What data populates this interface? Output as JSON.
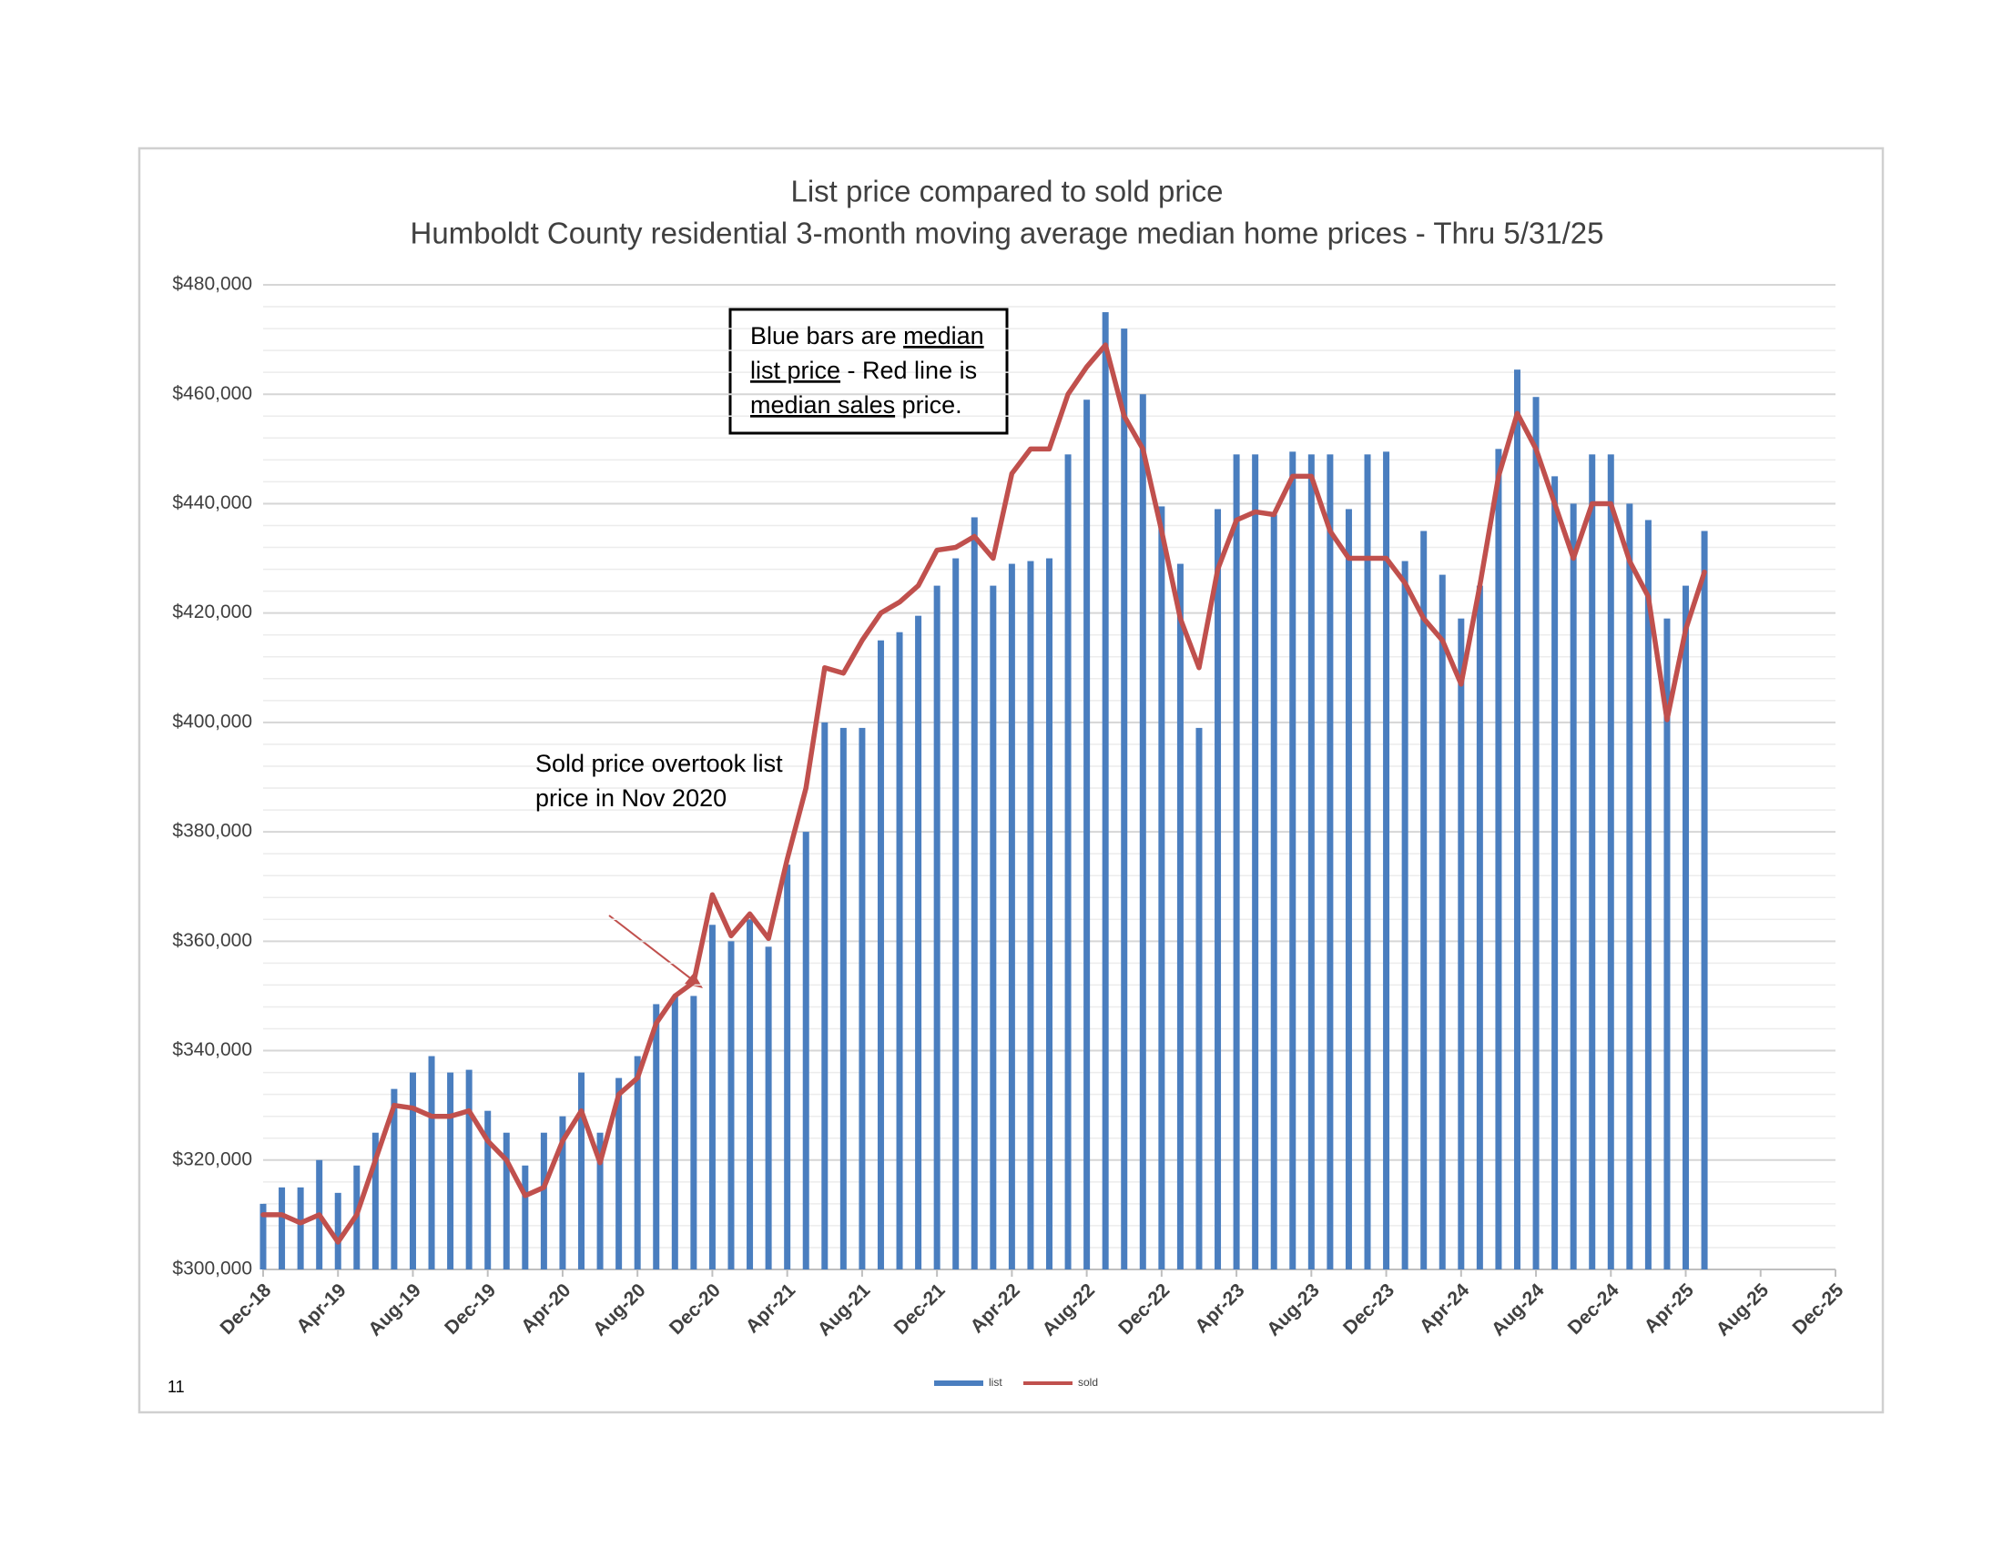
{
  "chart_data": {
    "type": "bar",
    "title": "List price compared to sold price",
    "subtitle": "Humboldt County residential 3-month moving average median home prices - Thru 5/31/25",
    "categories": [
      "Dec-18",
      null,
      null,
      null,
      "Apr-19",
      null,
      null,
      null,
      "Aug-19",
      null,
      null,
      null,
      "Dec-19",
      null,
      null,
      null,
      "Apr-20",
      null,
      null,
      null,
      "Aug-20",
      null,
      null,
      null,
      "Dec-20",
      null,
      null,
      null,
      "Apr-21",
      null,
      null,
      null,
      "Aug-21",
      null,
      null,
      null,
      "Dec-21",
      null,
      null,
      null,
      "Apr-22",
      null,
      null,
      null,
      "Aug-22",
      null,
      null,
      null,
      "Dec-22",
      null,
      null,
      null,
      "Apr-23",
      null,
      null,
      null,
      "Aug-23",
      null,
      null,
      null,
      "Dec-23",
      null,
      null,
      null,
      "Apr-24",
      null,
      null,
      null,
      "Aug-24",
      null,
      null,
      null,
      "Dec-24",
      null,
      null,
      null,
      "Apr-25",
      null,
      null,
      null,
      "Aug-25",
      null,
      null,
      null,
      "Dec-25"
    ],
    "series": [
      {
        "name": "list",
        "type": "bar",
        "color": "#4a7ebf",
        "values": [
          312000,
          315000,
          315000,
          320000,
          314000,
          319000,
          325000,
          333000,
          336000,
          339000,
          336000,
          336500,
          329000,
          325000,
          319000,
          325000,
          328000,
          336000,
          325000,
          335000,
          339000,
          348500,
          350000,
          350000,
          363000,
          360000,
          364000,
          359000,
          374000,
          380000,
          400000,
          399000,
          399000,
          415000,
          416500,
          419500,
          425000,
          430000,
          437500,
          425000,
          429000,
          429500,
          430000,
          449000,
          459000,
          475000,
          472000,
          460000,
          439500,
          429000,
          399000,
          439000,
          449000,
          449000,
          438000,
          449500,
          449000,
          449000,
          439000,
          449000,
          449500,
          429500,
          435000,
          427000,
          419000,
          425000,
          450000,
          464500,
          459500,
          445000,
          440000,
          449000,
          449000,
          440000,
          437000,
          419000,
          425000,
          435000,
          null,
          null,
          null,
          null,
          null,
          null,
          null
        ]
      },
      {
        "name": "sold",
        "type": "line",
        "color": "#c0504d",
        "values": [
          310000,
          310000,
          308500,
          310000,
          305000,
          310000,
          320000,
          330000,
          329500,
          328000,
          328000,
          329000,
          323500,
          320000,
          313500,
          315000,
          323500,
          329000,
          319500,
          332000,
          335000,
          345000,
          350000,
          352500,
          368500,
          361000,
          365000,
          360500,
          375000,
          388000,
          410000,
          409000,
          415000,
          420000,
          422000,
          425000,
          431500,
          432000,
          434000,
          430000,
          445500,
          450000,
          450000,
          460000,
          465000,
          469000,
          456000,
          450000,
          435000,
          419000,
          410000,
          428000,
          437000,
          438500,
          438000,
          445000,
          445000,
          435000,
          430000,
          430000,
          430000,
          425500,
          419000,
          415000,
          407000,
          425000,
          445000,
          456500,
          450000,
          440000,
          430000,
          440000,
          440000,
          429500,
          423000,
          400500,
          417000,
          427500,
          null,
          null,
          null,
          null,
          null,
          null,
          null
        ]
      }
    ],
    "ylim": [
      300000,
      480000
    ],
    "yticks": [
      {
        "value": 300000,
        "label": "$300,000"
      },
      {
        "value": 320000,
        "label": "$320,000"
      },
      {
        "value": 340000,
        "label": "$340,000"
      },
      {
        "value": 360000,
        "label": "$360,000"
      },
      {
        "value": 380000,
        "label": "$380,000"
      },
      {
        "value": 400000,
        "label": "$400,000"
      },
      {
        "value": 420000,
        "label": "$420,000"
      },
      {
        "value": 440000,
        "label": "$440,000"
      },
      {
        "value": 460000,
        "label": "$460,000"
      },
      {
        "value": 480000,
        "label": "$480,000"
      }
    ],
    "grid": true,
    "legend": "bottom",
    "annotations": [
      {
        "lines": [
          [
            {
              "text": "Blue bars are "
            },
            {
              "text": "median",
              "underline": true
            }
          ],
          [
            {
              "text": "list price",
              "underline": true
            },
            {
              "text": " - Red line is"
            }
          ],
          [
            {
              "text": "median sales",
              "underline": true
            },
            {
              "text": " price."
            }
          ]
        ]
      },
      {
        "lines": [
          [
            {
              "text": "Sold price overtook list"
            }
          ],
          [
            {
              "text": "price in Nov 2020"
            }
          ]
        ]
      }
    ],
    "page_number": "11"
  }
}
